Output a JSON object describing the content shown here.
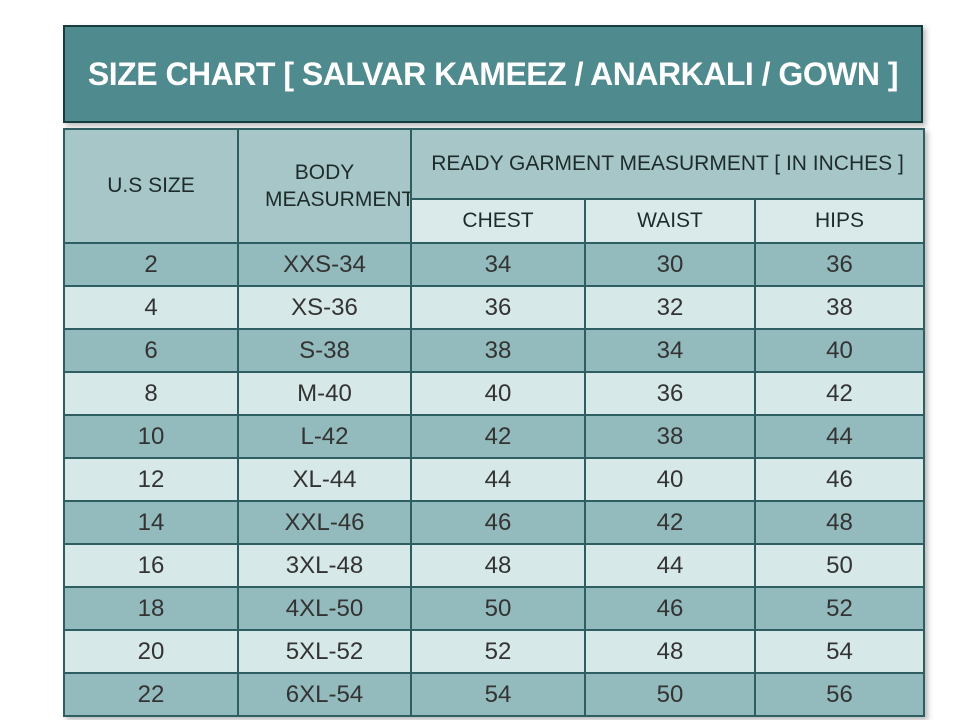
{
  "title": "SIZE CHART [ SALVAR KAMEEZ / ANARKALI / GOWN ]",
  "header": {
    "us_size": "U.S SIZE",
    "body_measurement": "BODY MEASURMENT",
    "ready_garment": "READY GARMENT MEASURMENT [ IN INCHES ]",
    "chest": "CHEST",
    "waist": "WAIST",
    "hips": "HIPS"
  },
  "chart_data": {
    "type": "table",
    "title": "SIZE CHART [ SALVAR KAMEEZ / ANARKALI / GOWN ]",
    "group_header": "READY GARMENT MEASURMENT [ IN INCHES ]",
    "columns": [
      "U.S SIZE",
      "BODY MEASURMENT",
      "CHEST",
      "WAIST",
      "HIPS"
    ],
    "rows": [
      {
        "us_size": "2",
        "body_measurement": "XXS-34",
        "chest": "34",
        "waist": "30",
        "hips": "36"
      },
      {
        "us_size": "4",
        "body_measurement": "XS-36",
        "chest": "36",
        "waist": "32",
        "hips": "38"
      },
      {
        "us_size": "6",
        "body_measurement": "S-38",
        "chest": "38",
        "waist": "34",
        "hips": "40"
      },
      {
        "us_size": "8",
        "body_measurement": "M-40",
        "chest": "40",
        "waist": "36",
        "hips": "42"
      },
      {
        "us_size": "10",
        "body_measurement": "L-42",
        "chest": "42",
        "waist": "38",
        "hips": "44"
      },
      {
        "us_size": "12",
        "body_measurement": "XL-44",
        "chest": "44",
        "waist": "40",
        "hips": "46"
      },
      {
        "us_size": "14",
        "body_measurement": "XXL-46",
        "chest": "46",
        "waist": "42",
        "hips": "48"
      },
      {
        "us_size": "16",
        "body_measurement": "3XL-48",
        "chest": "48",
        "waist": "44",
        "hips": "50"
      },
      {
        "us_size": "18",
        "body_measurement": "4XL-50",
        "chest": "50",
        "waist": "46",
        "hips": "52"
      },
      {
        "us_size": "20",
        "body_measurement": "5XL-52",
        "chest": "52",
        "waist": "48",
        "hips": "54"
      },
      {
        "us_size": "22",
        "body_measurement": "6XL-54",
        "chest": "54",
        "waist": "50",
        "hips": "56"
      }
    ]
  },
  "colors": {
    "title_bg": "#4E8A8E",
    "title_text": "#FFFFFF",
    "header_bg": "#A7C6C8",
    "subheader_bg": "#DAEAEA",
    "row_dark": "#93BABC",
    "row_light": "#D7E8E9",
    "border": "#2E5E62",
    "outer_border": "#173C40",
    "body_text": "#333333"
  }
}
